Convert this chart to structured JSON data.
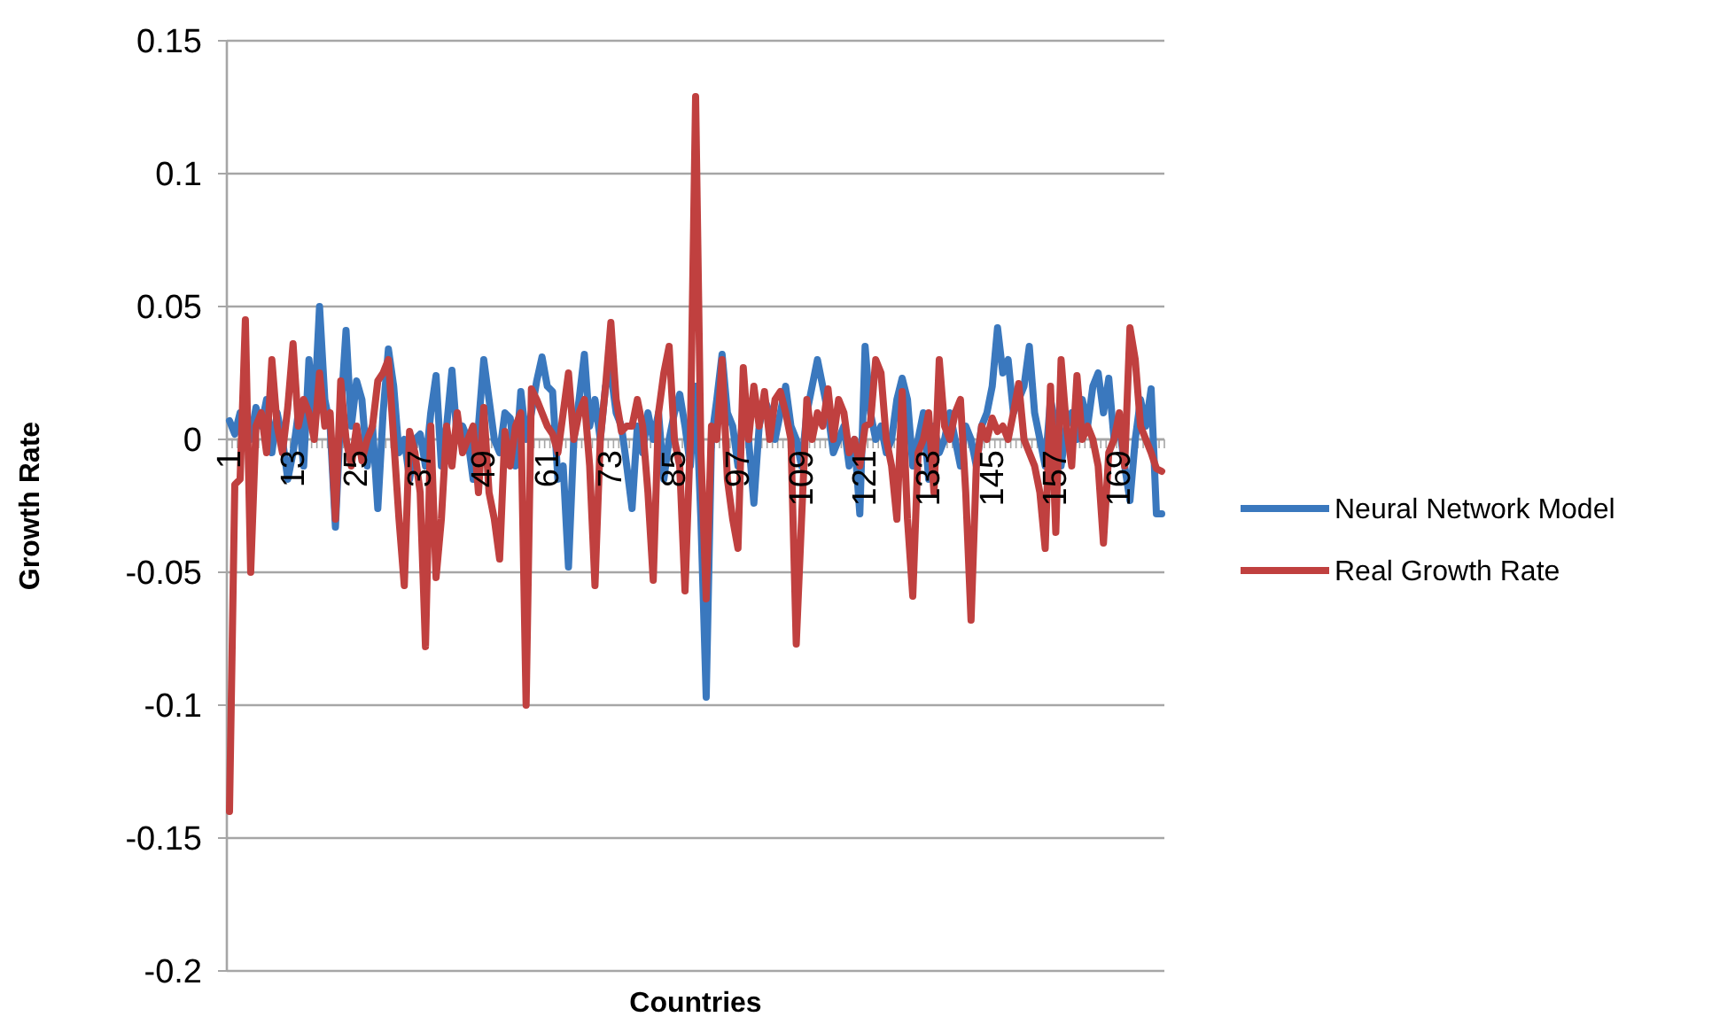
{
  "chart_data": {
    "type": "line",
    "xlabel": "Countries",
    "ylabel": "Growth Rate",
    "categories": [
      "1",
      null,
      null,
      null,
      null,
      null,
      null,
      null,
      null,
      null,
      null,
      null,
      "13",
      null,
      null,
      null,
      null,
      null,
      null,
      null,
      null,
      null,
      null,
      null,
      "25",
      null,
      null,
      null,
      null,
      null,
      null,
      null,
      null,
      null,
      null,
      null,
      "37",
      null,
      null,
      null,
      null,
      null,
      null,
      null,
      null,
      null,
      null,
      null,
      "49",
      null,
      null,
      null,
      null,
      null,
      null,
      null,
      null,
      null,
      null,
      null,
      "61",
      null,
      null,
      null,
      null,
      null,
      null,
      null,
      null,
      null,
      null,
      null,
      "73",
      null,
      null,
      null,
      null,
      null,
      null,
      null,
      null,
      null,
      null,
      null,
      "85",
      null,
      null,
      null,
      null,
      null,
      null,
      null,
      null,
      null,
      null,
      null,
      "97",
      null,
      null,
      null,
      null,
      null,
      null,
      null,
      null,
      null,
      null,
      null,
      "109",
      null,
      null,
      null,
      null,
      null,
      null,
      null,
      null,
      null,
      null,
      null,
      "121",
      null,
      null,
      null,
      null,
      null,
      null,
      null,
      null,
      null,
      null,
      null,
      "133",
      null,
      null,
      null,
      null,
      null,
      null,
      null,
      null,
      null,
      null,
      null,
      "145",
      null,
      null,
      null,
      null,
      null,
      null,
      null,
      null,
      null,
      null,
      null,
      "157",
      null,
      null,
      null,
      null,
      null,
      null,
      null,
      null,
      null,
      null,
      null,
      "169",
      null,
      null,
      null,
      null,
      null,
      null,
      null,
      null
    ],
    "series": [
      {
        "name": "Neural Network Model",
        "color": "#3a78be",
        "values": [
          0.007,
          0.002,
          0.01,
          0.005,
          0.0,
          0.012,
          0.005,
          0.015,
          -0.005,
          0.01,
          0.0,
          -0.015,
          -0.005,
          0.01,
          -0.01,
          0.03,
          0.01,
          0.05,
          0.015,
          0.005,
          -0.033,
          0.01,
          0.041,
          0.005,
          0.022,
          0.015,
          -0.01,
          0.005,
          -0.026,
          0.01,
          0.034,
          0.02,
          -0.005,
          0.0,
          -0.015,
          0.0,
          0.002,
          -0.01,
          0.01,
          0.024,
          -0.01,
          0.005,
          0.026,
          0.0,
          0.005,
          0.0,
          -0.015,
          0.005,
          0.03,
          0.015,
          0.0,
          -0.005,
          0.01,
          0.008,
          -0.01,
          0.018,
          0.0,
          0.01,
          0.022,
          0.031,
          0.02,
          0.018,
          -0.015,
          -0.01,
          -0.048,
          0.0,
          0.015,
          0.032,
          0.005,
          0.015,
          0.0,
          0.02,
          0.025,
          0.01,
          0.005,
          -0.01,
          -0.026,
          0.005,
          -0.005,
          0.01,
          0.0,
          0.01,
          -0.015,
          0.0,
          0.01,
          0.017,
          0.005,
          -0.01,
          0.02,
          -0.03,
          -0.097,
          0.0,
          0.015,
          0.032,
          0.01,
          0.005,
          -0.01,
          0.01,
          0.0,
          -0.024,
          0.005,
          0.015,
          0.01,
          0.0,
          0.01,
          0.02,
          0.005,
          0.0,
          -0.01,
          0.01,
          0.02,
          0.03,
          0.02,
          0.01,
          -0.005,
          0.0,
          0.005,
          -0.01,
          0.0,
          -0.028,
          0.035,
          0.01,
          0.0,
          0.005,
          -0.005,
          0.0,
          0.015,
          0.023,
          0.015,
          -0.01,
          0.0,
          0.01,
          -0.015,
          0.005,
          -0.005,
          0.0,
          0.01,
          0.0,
          -0.01,
          0.005,
          0.0,
          -0.01,
          0.005,
          0.01,
          0.02,
          0.042,
          0.025,
          0.03,
          0.01,
          0.015,
          0.02,
          0.035,
          0.01,
          0.0,
          -0.01,
          0.015,
          0.005,
          -0.01,
          0.005,
          0.01,
          0.0,
          0.015,
          0.005,
          0.02,
          0.025,
          0.01,
          0.023,
          0.0,
          0.005,
          -0.01,
          -0.023,
          0.0,
          0.015,
          0.005,
          0.019,
          -0.028,
          -0.028
        ]
      },
      {
        "name": "Real Growth Rate",
        "color": "#c0403f",
        "values": [
          -0.14,
          -0.017,
          -0.015,
          0.045,
          -0.05,
          0.005,
          0.01,
          -0.005,
          0.03,
          0.005,
          -0.005,
          0.012,
          0.036,
          0.005,
          0.015,
          0.01,
          0.0,
          0.025,
          0.005,
          0.01,
          -0.03,
          0.022,
          0.0,
          -0.01,
          0.005,
          -0.008,
          0.0,
          0.005,
          0.022,
          0.025,
          0.03,
          0.0,
          -0.03,
          -0.055,
          0.003,
          -0.005,
          -0.02,
          -0.078,
          0.005,
          -0.052,
          -0.03,
          0.005,
          -0.01,
          0.01,
          -0.005,
          0.0,
          0.005,
          -0.02,
          0.012,
          -0.02,
          -0.03,
          -0.045,
          0.003,
          -0.01,
          0.005,
          0.01,
          -0.1,
          0.019,
          0.015,
          0.01,
          0.005,
          0.002,
          -0.005,
          0.01,
          0.025,
          0.0,
          0.01,
          0.015,
          -0.01,
          -0.055,
          0.0,
          0.02,
          0.044,
          0.015,
          0.003,
          0.005,
          0.005,
          0.015,
          0.005,
          -0.02,
          -0.053,
          0.01,
          0.025,
          0.035,
          0.0,
          -0.01,
          -0.057,
          0.0,
          0.129,
          -0.005,
          -0.06,
          0.005,
          0.0,
          0.03,
          -0.015,
          -0.03,
          -0.041,
          0.027,
          0.0,
          0.02,
          0.005,
          0.018,
          0.0,
          0.015,
          0.018,
          0.01,
          0.0,
          -0.077,
          -0.03,
          0.015,
          0.0,
          0.01,
          0.005,
          0.019,
          0.0,
          0.015,
          0.01,
          -0.005,
          0.0,
          -0.01,
          0.005,
          0.006,
          0.03,
          0.025,
          0.0,
          -0.01,
          -0.03,
          0.018,
          -0.03,
          -0.059,
          -0.005,
          0.0,
          0.01,
          -0.02,
          0.03,
          0.005,
          0.0,
          0.01,
          0.015,
          -0.02,
          -0.068,
          -0.01,
          0.005,
          0.0,
          0.008,
          0.003,
          0.005,
          0.0,
          0.01,
          0.021,
          0.0,
          -0.005,
          -0.01,
          -0.02,
          -0.041,
          0.02,
          -0.035,
          0.03,
          0.005,
          -0.01,
          0.024,
          0.0,
          0.005,
          0.0,
          -0.01,
          -0.039,
          -0.005,
          0.0,
          0.01,
          -0.01,
          0.042,
          0.03,
          0.005,
          0.0,
          -0.005,
          -0.011,
          -0.012
        ]
      }
    ],
    "ylim": [
      -0.2,
      0.15
    ],
    "yticks": [
      -0.2,
      -0.15,
      -0.1,
      -0.05,
      0,
      0.05,
      0.1,
      0.15
    ],
    "grid": "y",
    "legend": "right",
    "marker": "none",
    "line_style": "solid"
  }
}
